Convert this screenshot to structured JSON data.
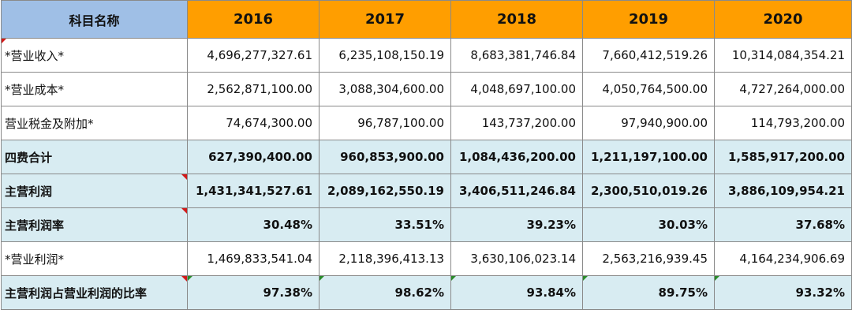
{
  "table": {
    "name_header": "科目名称",
    "years": [
      "2016",
      "2017",
      "2018",
      "2019",
      "2020"
    ],
    "rows": [
      {
        "label": "*营业收入*",
        "values": [
          "4,696,277,327.61",
          "6,235,108,150.19",
          "8,683,381,746.84",
          "7,660,412,519.26",
          "10,314,084,354.21"
        ]
      },
      {
        "label": "*营业成本*",
        "values": [
          "2,562,871,100.00",
          "3,088,304,600.00",
          "4,048,697,100.00",
          "4,050,764,500.00",
          "4,727,264,000.00"
        ]
      },
      {
        "label": "营业税金及附加*",
        "values": [
          "74,674,300.00",
          "96,787,100.00",
          "143,737,200.00",
          "97,940,900.00",
          "114,793,200.00"
        ]
      },
      {
        "label": "四费合计",
        "values": [
          "627,390,400.00",
          "960,853,900.00",
          "1,084,436,200.00",
          "1,211,197,100.00",
          "1,585,917,200.00"
        ]
      },
      {
        "label": "主营利润",
        "values": [
          "1,431,341,527.61",
          "2,089,162,550.19",
          "3,406,511,246.84",
          "2,300,510,019.26",
          "3,886,109,954.21"
        ]
      },
      {
        "label": "主营利润率",
        "values": [
          "30.48%",
          "33.51%",
          "39.23%",
          "30.03%",
          "37.68%"
        ]
      },
      {
        "label": "*营业利润*",
        "values": [
          "1,469,833,541.04",
          "2,118,396,413.13",
          "3,630,106,023.14",
          "2,563,216,939.45",
          "4,164,234,906.69"
        ]
      },
      {
        "label": "主营利润占营业利润的比率",
        "values": [
          "97.38%",
          "98.62%",
          "93.84%",
          "89.75%",
          "93.32%"
        ]
      }
    ]
  },
  "colors": {
    "name_header_bg": "#9fbfe6",
    "year_header_bg": "#ff9e00",
    "bold_row_bg": "#d8ecf2",
    "comment_marker_red": "#d21a1a",
    "comment_marker_green": "#2a8a2a"
  }
}
